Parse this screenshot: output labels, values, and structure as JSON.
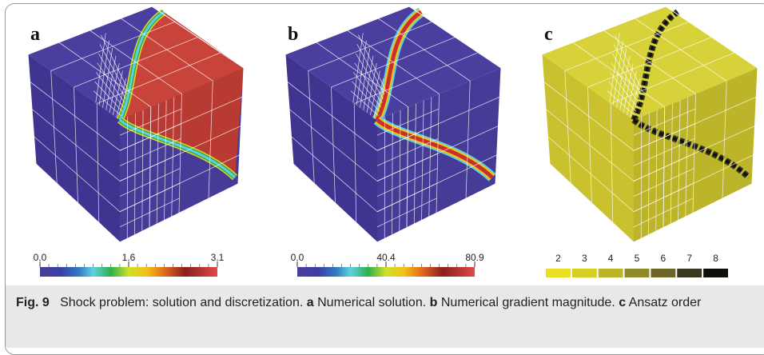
{
  "figure": {
    "panels": [
      {
        "label": "a",
        "colorbar_ticks": [
          "0.0",
          "1.6",
          "3.1"
        ]
      },
      {
        "label": "b",
        "colorbar_ticks": [
          "0.0",
          "40.4",
          "80.9"
        ]
      },
      {
        "label": "c",
        "legend_ticks": [
          2,
          3,
          4,
          5,
          6,
          7,
          8
        ]
      }
    ],
    "caption": {
      "figure_label": "Fig. 9",
      "text": "Shock problem: solution and discretization.",
      "parts": [
        {
          "label": "a",
          "text": "Numerical solution."
        },
        {
          "label": "b",
          "text": "Numerical gradient magnitude."
        },
        {
          "label": "c",
          "text": "Ansatz order"
        }
      ]
    }
  }
}
